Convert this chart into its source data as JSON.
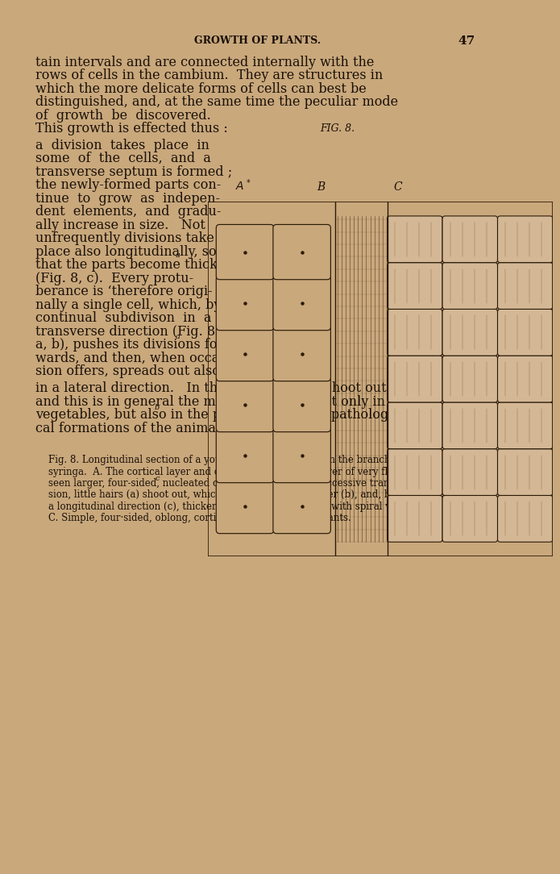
{
  "background_color": "#c9a87c",
  "text_color": "#1a1008",
  "header_text": "GROWTH OF PLANTS.",
  "page_number": "47",
  "header_fontsize": 9,
  "body_fontsize": 11.5,
  "caption_fontsize": 8.5,
  "fig_label": "FIG. 8.",
  "main_body_left": [
    "tain intervals and are connected internally with the",
    "rows of cells in the cambium.  They are structures in",
    "which the more delicate forms of cells can best be",
    "distinguished, and, at the same time the peculiar mode",
    "of  growth  be  discovered.",
    "This growth is effected thus :"
  ],
  "main_body_wrapped_left": [
    "a  division  takes  place  in",
    "some  of  the  cells,  and  a",
    "transverse septum is formed ;",
    "the newly-formed parts con-",
    "tinue  to  grow  as  indepen-",
    "dent  elements,  and  gradu-",
    "ally increase in size.   Not",
    "unfrequently divisions take",
    "place also longitudinally, so",
    "that the parts become thicker",
    "(Fig. 8, c).  Every protu-",
    "berance is ‘therefore origi-",
    "nally a single cell, which, by",
    "continual  subdivison  in  a",
    "transverse direction (Fig. 8.",
    "a, b), pushes its divisions for-",
    "wards, and then, when occa-",
    "sion offers, spreads out also"
  ],
  "main_body_full": [
    "in a lateral direction.   In this way the hairs shoot out,",
    "and this is in general the mode of growth, not only in",
    "vegetables, but also in the physiological and pathologi-",
    "cal formations of the animal body."
  ],
  "caption_lines": [
    "Fig. 8. Longitudinal section of a young February-shoot from the branch of a",
    "syringa.  A. The cortical layer and cambium ; beneath a layer of very flat cells are",
    "seen larger, four-sided, nucleated ones, from which, by successive transverse divi-",
    "sion, little hairs (a) shoot out, which grow longer and longer (b), and, by division in",
    "a longitudinal direction (c), thicker.  B. The vascular layer, with spiral vessels.",
    "C. Simple, four·sided, oblong, cortical cells.—Growth of Plants."
  ]
}
